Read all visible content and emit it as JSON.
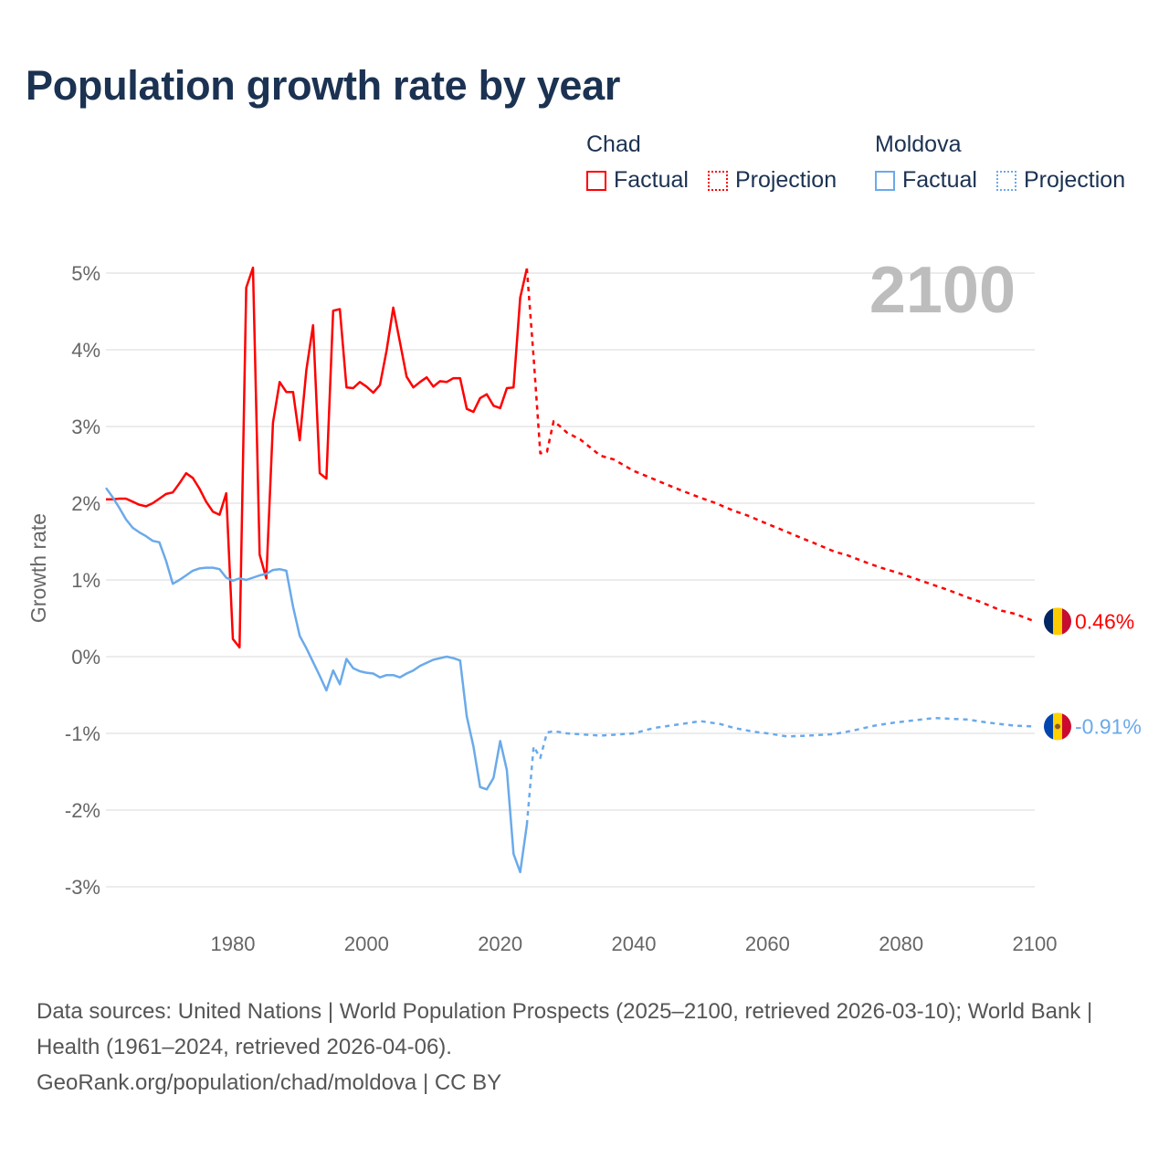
{
  "title": "Population growth rate by year",
  "legend": {
    "groups": [
      {
        "name": "Chad",
        "factual": "Factual",
        "projection": "Projection",
        "color": "#ff0000"
      },
      {
        "name": "Moldova",
        "factual": "Factual",
        "projection": "Projection",
        "color": "#6aaaea"
      }
    ]
  },
  "current_year_label": "2100",
  "sources": "Data sources: United Nations | World Population Prospects (2025–2100, retrieved 2026-03-10); World Bank | Health (1961–2024, retrieved 2026-04-06).",
  "attribution": "GeoRank.org/population/chad/moldova | CC BY",
  "chart_data": {
    "type": "line",
    "title": "Population growth rate by year",
    "xlabel": "",
    "ylabel": "Growth rate",
    "xlim": [
      1961,
      2100
    ],
    "ylim": [
      -3.5,
      5.2
    ],
    "xticks": [
      1980,
      2000,
      2020,
      2040,
      2060,
      2080,
      2100
    ],
    "xtick_labels": [
      "1980",
      "2000",
      "2020",
      "2040",
      "2060",
      "2080",
      "2100"
    ],
    "yticks": [
      5,
      4,
      3,
      2,
      1,
      0,
      -1,
      -2,
      -3
    ],
    "ytick_labels": [
      "5%",
      "4%",
      "3%",
      "2%",
      "1%",
      "0%",
      "-1%",
      "-2%",
      "-3%"
    ],
    "grid": true,
    "legend_position": "top-right",
    "series": [
      {
        "name": "Chad",
        "kind": "factual",
        "color": "#ff0000",
        "x": [
          1961,
          1962,
          1963,
          1964,
          1965,
          1966,
          1967,
          1968,
          1969,
          1970,
          1971,
          1972,
          1973,
          1974,
          1975,
          1976,
          1977,
          1978,
          1979,
          1980,
          1981,
          1982,
          1983,
          1984,
          1985,
          1986,
          1987,
          1988,
          1989,
          1990,
          1991,
          1992,
          1993,
          1994,
          1995,
          1996,
          1997,
          1998,
          1999,
          2000,
          2001,
          2002,
          2003,
          2004,
          2005,
          2006,
          2007,
          2008,
          2009,
          2010,
          2011,
          2012,
          2013,
          2014,
          2015,
          2016,
          2017,
          2018,
          2019,
          2020,
          2021,
          2022,
          2023,
          2024
        ],
        "y": [
          2.05,
          2.05,
          2.06,
          2.06,
          2.02,
          1.98,
          1.96,
          2.0,
          2.06,
          2.12,
          2.14,
          2.26,
          2.39,
          2.33,
          2.19,
          2.02,
          1.89,
          1.85,
          2.13,
          0.23,
          0.12,
          4.81,
          5.07,
          1.33,
          1.02,
          3.05,
          3.58,
          3.45,
          3.45,
          2.82,
          3.74,
          4.32,
          2.39,
          2.32,
          4.51,
          4.53,
          3.51,
          3.5,
          3.58,
          3.52,
          3.44,
          3.54,
          3.99,
          4.55,
          4.1,
          3.65,
          3.51,
          3.58,
          3.64,
          3.52,
          3.59,
          3.58,
          3.63,
          3.63,
          3.23,
          3.19,
          3.37,
          3.42,
          3.27,
          3.24,
          3.5,
          3.51,
          4.68,
          5.06
        ]
      },
      {
        "name": "Chad",
        "kind": "projection",
        "color": "#ff0000",
        "x": [
          2024,
          2025,
          2026,
          2027,
          2028,
          2029,
          2030,
          2032,
          2035,
          2037,
          2040,
          2042,
          2045,
          2047,
          2050,
          2052,
          2055,
          2057,
          2060,
          2062,
          2065,
          2067,
          2070,
          2072,
          2075,
          2077,
          2080,
          2082,
          2085,
          2087,
          2090,
          2092,
          2095,
          2097,
          2100
        ],
        "y": [
          5.06,
          3.9,
          2.65,
          2.67,
          3.07,
          3.0,
          2.92,
          2.83,
          2.62,
          2.57,
          2.42,
          2.35,
          2.24,
          2.17,
          2.07,
          2.01,
          1.9,
          1.84,
          1.73,
          1.66,
          1.55,
          1.48,
          1.37,
          1.32,
          1.22,
          1.16,
          1.08,
          1.02,
          0.93,
          0.87,
          0.77,
          0.71,
          0.6,
          0.56,
          0.46
        ]
      },
      {
        "name": "Moldova",
        "kind": "factual",
        "color": "#6aaaea",
        "x": [
          1961,
          1962,
          1963,
          1964,
          1965,
          1966,
          1967,
          1968,
          1969,
          1970,
          1971,
          1972,
          1973,
          1974,
          1975,
          1976,
          1977,
          1978,
          1979,
          1980,
          1981,
          1982,
          1983,
          1984,
          1985,
          1986,
          1987,
          1988,
          1989,
          1990,
          1991,
          1992,
          1993,
          1994,
          1995,
          1996,
          1997,
          1998,
          1999,
          2000,
          2001,
          2002,
          2003,
          2004,
          2005,
          2006,
          2007,
          2008,
          2009,
          2010,
          2011,
          2012,
          2013,
          2014,
          2015,
          2016,
          2017,
          2018,
          2019,
          2020,
          2021,
          2022,
          2023,
          2024
        ],
        "y": [
          2.2,
          2.08,
          1.94,
          1.79,
          1.68,
          1.62,
          1.57,
          1.51,
          1.49,
          1.25,
          0.95,
          1.0,
          1.06,
          1.12,
          1.15,
          1.16,
          1.16,
          1.14,
          1.03,
          0.99,
          1.02,
          1.0,
          1.03,
          1.06,
          1.08,
          1.13,
          1.14,
          1.12,
          0.65,
          0.27,
          0.11,
          -0.07,
          -0.25,
          -0.44,
          -0.18,
          -0.36,
          -0.03,
          -0.15,
          -0.19,
          -0.21,
          -0.22,
          -0.27,
          -0.24,
          -0.24,
          -0.27,
          -0.22,
          -0.18,
          -0.12,
          -0.08,
          -0.04,
          -0.02,
          0.0,
          -0.02,
          -0.05,
          -0.78,
          -1.17,
          -1.7,
          -1.73,
          -1.58,
          -1.1,
          -1.48,
          -2.57,
          -2.81,
          -2.19
        ]
      },
      {
        "name": "Moldova",
        "kind": "projection",
        "color": "#6aaaea",
        "x": [
          2024,
          2025,
          2026,
          2027,
          2028,
          2030,
          2035,
          2040,
          2043,
          2047,
          2050,
          2053,
          2055,
          2058,
          2060,
          2063,
          2066,
          2070,
          2073,
          2076,
          2079,
          2082,
          2085,
          2090,
          2093,
          2097,
          2100
        ],
        "y": [
          -2.19,
          -1.17,
          -1.32,
          -0.99,
          -0.97,
          -1.0,
          -1.03,
          -1.0,
          -0.93,
          -0.88,
          -0.84,
          -0.88,
          -0.93,
          -0.98,
          -1.0,
          -1.04,
          -1.03,
          -1.01,
          -0.96,
          -0.9,
          -0.86,
          -0.83,
          -0.8,
          -0.82,
          -0.86,
          -0.9,
          -0.91
        ]
      }
    ],
    "end_labels": [
      {
        "country": "Chad",
        "value": 0.46,
        "text": "0.46%",
        "color": "#ff0000",
        "flag": [
          "#002664",
          "#fecb00",
          "#c60c30"
        ]
      },
      {
        "country": "Moldova",
        "value": -0.91,
        "text": "-0.91%",
        "color": "#6aaaea",
        "flag": [
          "#0046ae",
          "#ffd200",
          "#cc092f"
        ]
      }
    ]
  }
}
